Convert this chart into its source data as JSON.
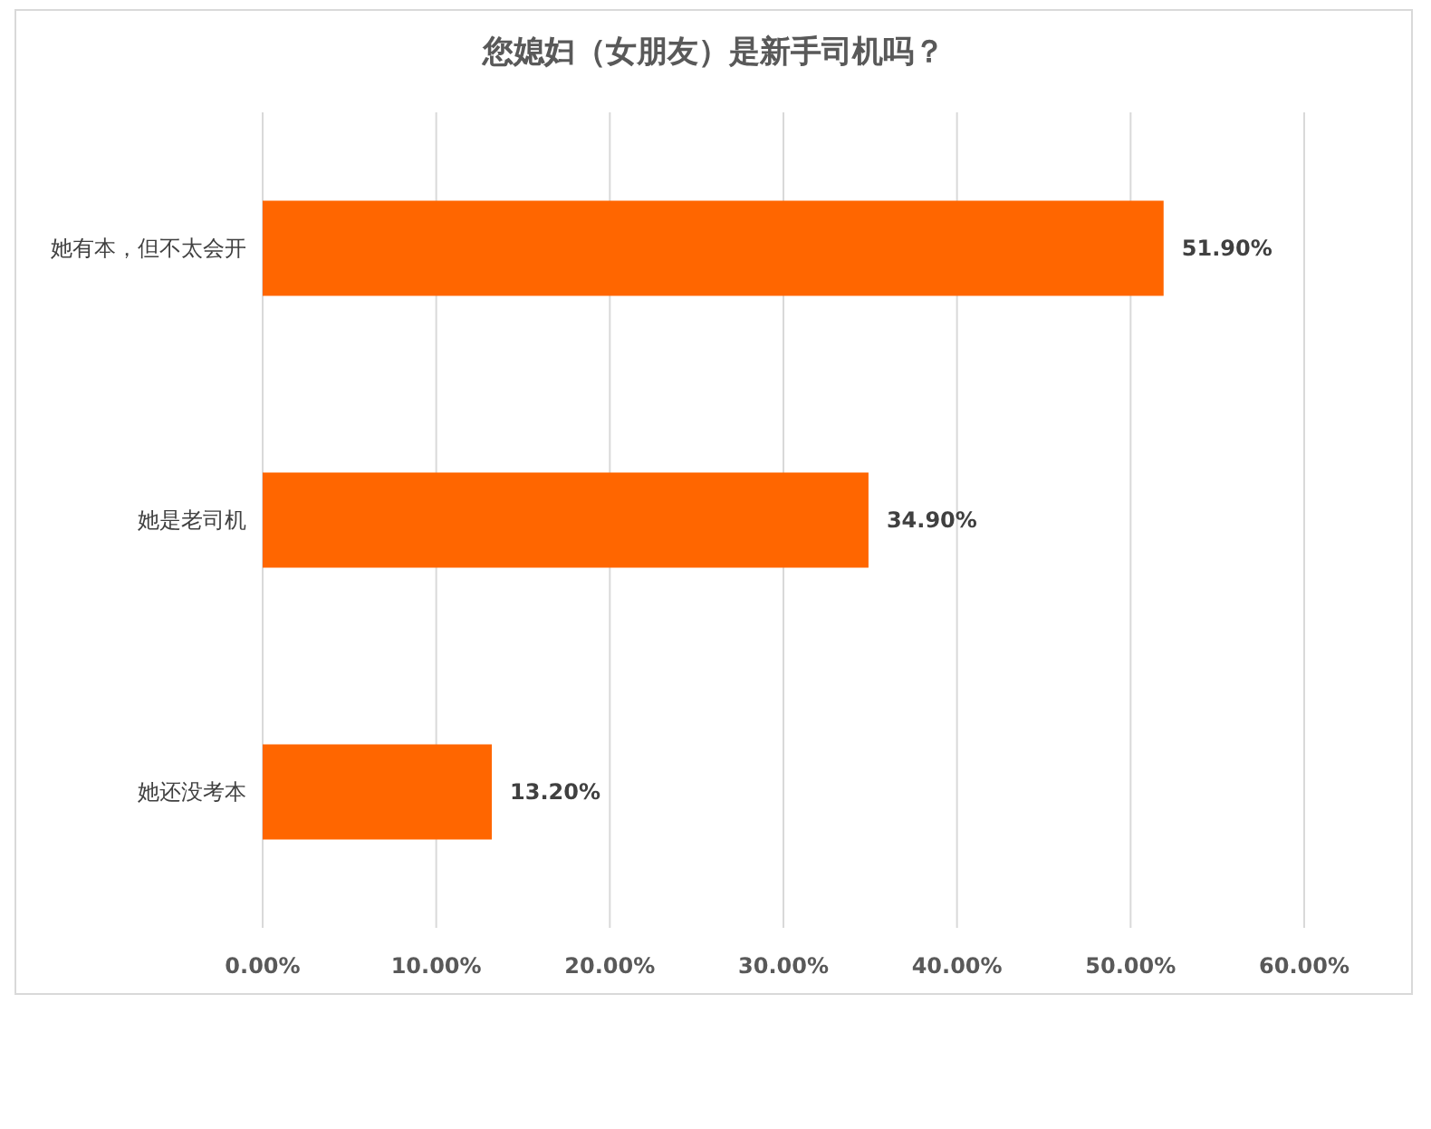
{
  "chart_data": {
    "type": "bar",
    "orientation": "horizontal",
    "title": "您媳妇（女朋友）是新手司机吗？",
    "categories": [
      "她有本，但不太会开",
      "她是老司机",
      "她还没考本"
    ],
    "values": [
      51.9,
      34.9,
      13.2
    ],
    "value_labels": [
      "51.90%",
      "34.90%",
      "13.20%"
    ],
    "color": "#ff6600",
    "xlim": [
      0,
      60
    ],
    "xticks": [
      {
        "value": 0,
        "label": "0.00%"
      },
      {
        "value": 10,
        "label": "10.00%"
      },
      {
        "value": 20,
        "label": "20.00%"
      },
      {
        "value": 30,
        "label": "30.00%"
      },
      {
        "value": 40,
        "label": "40.00%"
      },
      {
        "value": 50,
        "label": "50.00%"
      },
      {
        "value": 60,
        "label": "60.00%"
      }
    ],
    "grid": "x"
  }
}
